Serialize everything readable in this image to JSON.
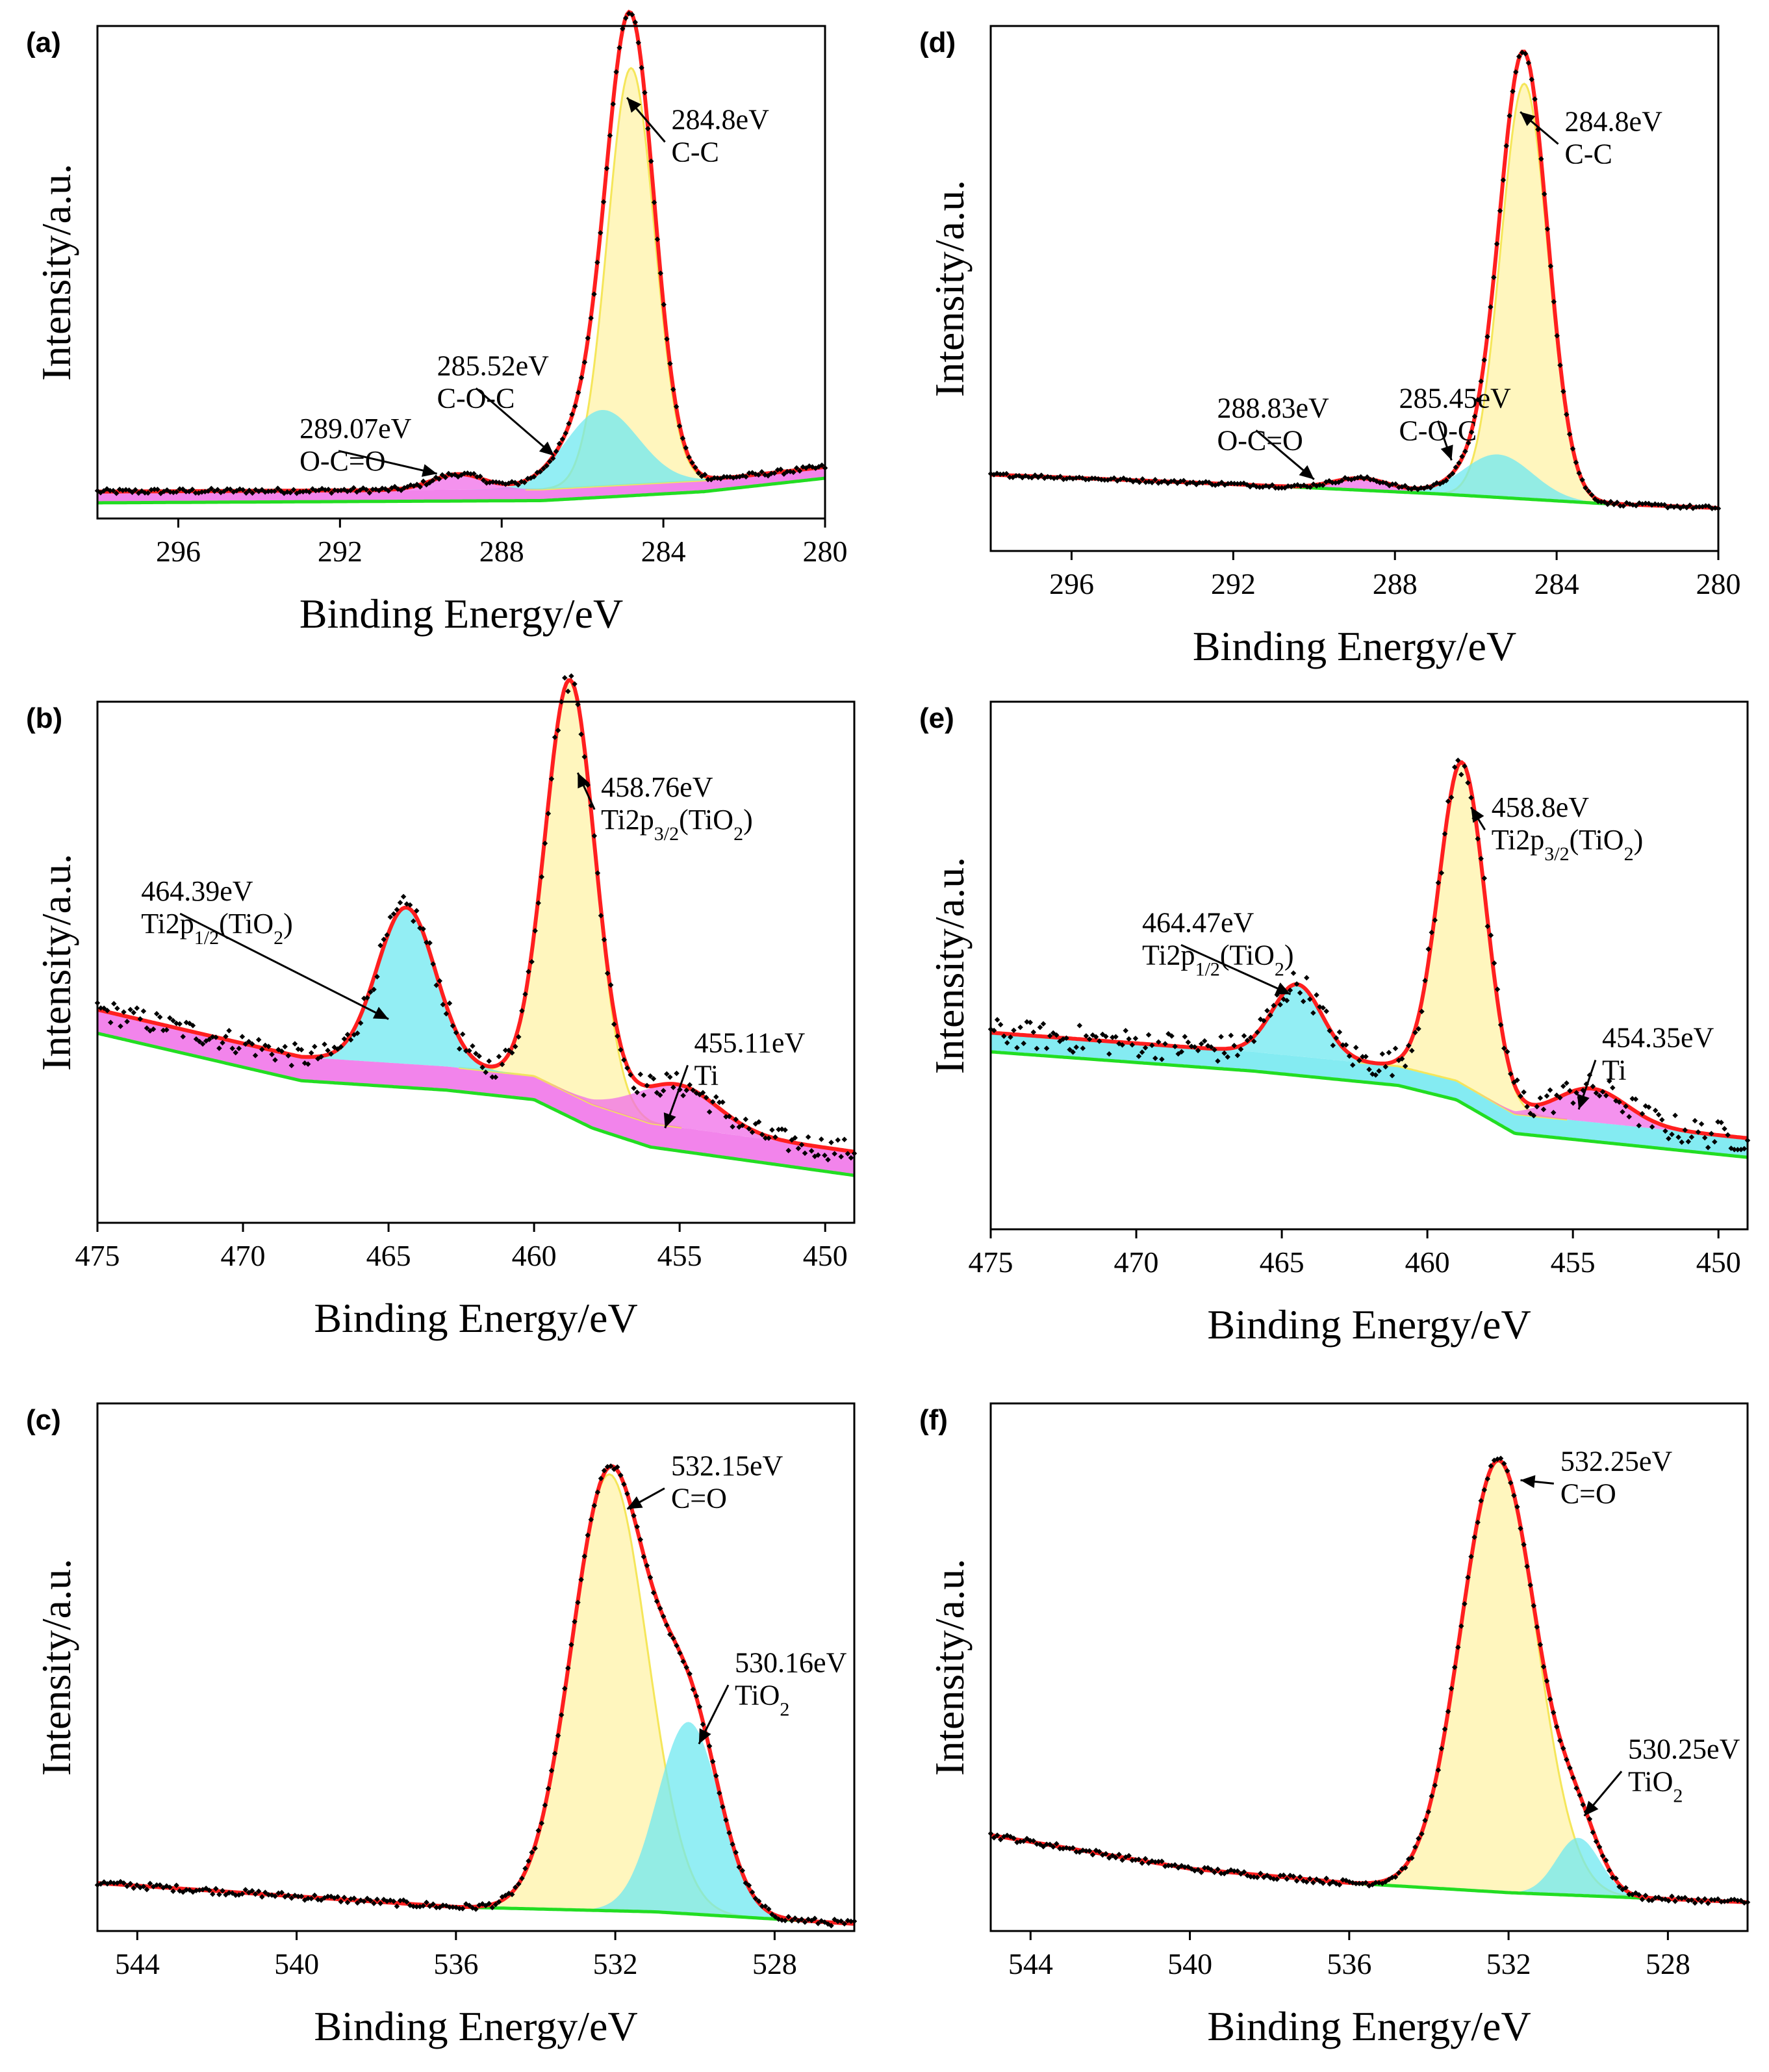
{
  "figure": {
    "xlabel": "Binding Energy/eV",
    "ylabel": "Intensity/a.u.",
    "colors": {
      "envelope": "#ff1f1f",
      "baseline": "#22dd22",
      "data_points": "#000000",
      "yellow_fill": "#fff3a8",
      "cyan_fill": "#6fe8f0",
      "magenta_fill": "#f06ee8",
      "frame": "#000000"
    }
  },
  "chart_data": [
    {
      "id": "a",
      "label": "(a)",
      "type": "line",
      "title": "",
      "xlabel": "Binding Energy/eV",
      "ylabel": "Intensity/a.u.",
      "xlim": [
        298,
        280
      ],
      "ylim": [
        0,
        1.1
      ],
      "xticks": [
        296,
        292,
        288,
        284,
        280
      ],
      "baseline": [
        [
          298,
          0.035
        ],
        [
          287,
          0.04
        ],
        [
          283,
          0.06
        ],
        [
          280,
          0.09
        ]
      ],
      "peaks": [
        {
          "center": 284.8,
          "height": 0.93,
          "width": 0.58,
          "fill": "yellow"
        },
        {
          "center": 285.52,
          "height": 0.17,
          "width": 0.9,
          "fill": "cyan"
        },
        {
          "center": 289.07,
          "height": 0.035,
          "width": 0.65,
          "fill": "magenta"
        }
      ],
      "background_fill": {
        "offset": 0.025,
        "fill": "magenta"
      },
      "noise": 0.006,
      "annotations": [
        {
          "value": "284.8eV",
          "bond": "C-C",
          "target": [
            284.9,
            0.94
          ],
          "text_at": [
            283.8,
            0.87
          ],
          "sub": ""
        },
        {
          "value": "285.52eV",
          "bond": "C-O-C",
          "target": [
            286.7,
            0.14
          ],
          "text_at": [
            289.6,
            0.32
          ],
          "sub": ""
        },
        {
          "value": "289.07eV",
          "bond": "O-C=O",
          "target": [
            289.6,
            0.1
          ],
          "text_at": [
            293.0,
            0.18
          ],
          "sub": ""
        }
      ]
    },
    {
      "id": "b",
      "label": "(b)",
      "type": "line",
      "title": "",
      "xlabel": "Binding Energy/eV",
      "ylabel": "Intensity/a.u.",
      "xlim": [
        475,
        449
      ],
      "ylim": [
        0,
        1.1
      ],
      "xticks": [
        475,
        470,
        465,
        460,
        455,
        450
      ],
      "baseline": [
        [
          475,
          0.4
        ],
        [
          468,
          0.3
        ],
        [
          463,
          0.28
        ],
        [
          460,
          0.26
        ],
        [
          458,
          0.2
        ],
        [
          456,
          0.16
        ],
        [
          449,
          0.1
        ]
      ],
      "peaks": [
        {
          "center": 458.76,
          "height": 0.87,
          "width": 0.85,
          "fill": "yellow"
        },
        {
          "center": 464.39,
          "height": 0.33,
          "width": 1.0,
          "fill": "cyan"
        },
        {
          "center": 455.11,
          "height": 0.09,
          "width": 1.4,
          "fill": "magenta"
        }
      ],
      "background_fill": {
        "offset": 0.05,
        "fill": "magenta"
      },
      "noise": 0.025,
      "annotations": [
        {
          "value": "458.76eV",
          "bond": "Ti2p",
          "sub": "3/2",
          "suffix": "(TiO",
          "sub2": "2",
          "close": ")",
          "target": [
            458.5,
            0.95
          ],
          "text_at": [
            457.7,
            0.9
          ]
        },
        {
          "value": "464.39eV",
          "bond": "Ti2p",
          "sub": "1/2",
          "suffix": "(TiO",
          "sub2": "2",
          "close": ")",
          "target": [
            465.0,
            0.43
          ],
          "text_at": [
            473.5,
            0.68
          ]
        },
        {
          "value": "455.11eV",
          "bond": "Ti",
          "sub": "",
          "target": [
            455.5,
            0.2
          ],
          "text_at": [
            454.5,
            0.36
          ]
        }
      ]
    },
    {
      "id": "c",
      "label": "(c)",
      "type": "line",
      "title": "",
      "xlabel": "Binding Energy/eV",
      "ylabel": "Intensity/a.u.",
      "xlim": [
        545,
        526
      ],
      "ylim": [
        0,
        1.1
      ],
      "xticks": [
        544,
        540,
        536,
        532,
        528
      ],
      "baseline": [
        [
          545,
          0.1
        ],
        [
          536,
          0.05
        ],
        [
          531,
          0.04
        ],
        [
          526,
          0.015
        ]
      ],
      "peaks": [
        {
          "center": 532.15,
          "height": 0.91,
          "width": 0.95,
          "fill": "yellow"
        },
        {
          "center": 530.16,
          "height": 0.4,
          "width": 0.78,
          "fill": "cyan"
        }
      ],
      "background_fill": null,
      "noise": 0.007,
      "annotations": [
        {
          "value": "532.15eV",
          "bond": "C=O",
          "target": [
            531.7,
            0.88
          ],
          "text_at": [
            530.6,
            0.95
          ],
          "sub": ""
        },
        {
          "value": "530.16eV",
          "bond": "TiO",
          "sub": "2",
          "sub_plain": true,
          "target": [
            529.9,
            0.39
          ],
          "text_at": [
            529.0,
            0.54
          ]
        }
      ]
    },
    {
      "id": "d",
      "label": "(d)",
      "type": "line",
      "title": "",
      "xlabel": "Binding Energy/eV",
      "ylabel": "Intensity/a.u.",
      "xlim": [
        298,
        280
      ],
      "ylim": [
        0,
        1.1
      ],
      "xticks": [
        296,
        292,
        288,
        284,
        280
      ],
      "baseline": [
        [
          298,
          0.16
        ],
        [
          292,
          0.14
        ],
        [
          287,
          0.12
        ],
        [
          283,
          0.1
        ],
        [
          280,
          0.09
        ]
      ],
      "peaks": [
        {
          "center": 284.8,
          "height": 0.87,
          "width": 0.58,
          "fill": "yellow"
        },
        {
          "center": 285.45,
          "height": 0.09,
          "width": 0.85,
          "fill": "cyan"
        },
        {
          "center": 288.83,
          "height": 0.025,
          "width": 0.7,
          "fill": "magenta"
        }
      ],
      "background_fill": null,
      "noise": 0.004,
      "annotations": [
        {
          "value": "284.8eV",
          "bond": "C-C",
          "target": [
            284.9,
            0.92
          ],
          "text_at": [
            283.8,
            0.88
          ],
          "sub": ""
        },
        {
          "value": "285.45eV",
          "bond": "C-O-C",
          "target": [
            286.6,
            0.19
          ],
          "text_at": [
            287.9,
            0.3
          ],
          "sub": ""
        },
        {
          "value": "288.83eV",
          "bond": "O-C=O",
          "target": [
            290.0,
            0.15
          ],
          "text_at": [
            292.4,
            0.28
          ],
          "sub": ""
        }
      ]
    },
    {
      "id": "e",
      "label": "(e)",
      "type": "line",
      "title": "",
      "xlabel": "Binding Energy/eV",
      "ylabel": "Intensity/a.u.",
      "xlim": [
        475,
        449
      ],
      "ylim": [
        0,
        1.1
      ],
      "xticks": [
        475,
        470,
        465,
        460,
        455,
        450
      ],
      "baseline": [
        [
          475,
          0.37
        ],
        [
          466,
          0.33
        ],
        [
          461,
          0.3
        ],
        [
          459,
          0.27
        ],
        [
          457,
          0.2
        ],
        [
          449,
          0.15
        ]
      ],
      "peaks": [
        {
          "center": 458.8,
          "height": 0.67,
          "width": 0.8,
          "fill": "yellow"
        },
        {
          "center": 464.47,
          "height": 0.15,
          "width": 0.85,
          "fill": "cyan"
        },
        {
          "center": 454.35,
          "height": 0.07,
          "width": 1.2,
          "fill": "magenta"
        }
      ],
      "background_fill": {
        "offset": 0.04,
        "fill": "cyan"
      },
      "noise": 0.03,
      "annotations": [
        {
          "value": "458.8eV",
          "bond": "Ti2p",
          "sub": "3/2",
          "suffix": "(TiO",
          "sub2": "2",
          "close": ")",
          "target": [
            458.5,
            0.88
          ],
          "text_at": [
            457.8,
            0.86
          ]
        },
        {
          "value": "464.47eV",
          "bond": "Ti2p",
          "sub": "1/2",
          "suffix": "(TiO",
          "sub2": "2",
          "close": ")",
          "target": [
            464.7,
            0.49
          ],
          "text_at": [
            469.8,
            0.62
          ]
        },
        {
          "value": "454.35eV",
          "bond": "Ti",
          "sub": "",
          "target": [
            454.8,
            0.25
          ],
          "text_at": [
            454.0,
            0.38
          ]
        }
      ]
    },
    {
      "id": "f",
      "label": "(f)",
      "type": "line",
      "title": "",
      "xlabel": "Binding Energy/eV",
      "ylabel": "Intensity/a.u.",
      "xlim": [
        545,
        526
      ],
      "ylim": [
        0,
        1.1
      ],
      "xticks": [
        544,
        540,
        536,
        532,
        528
      ],
      "baseline": [
        [
          545,
          0.2
        ],
        [
          540,
          0.13
        ],
        [
          536,
          0.1
        ],
        [
          532,
          0.08
        ],
        [
          526,
          0.06
        ]
      ],
      "peaks": [
        {
          "center": 532.25,
          "height": 0.9,
          "width": 0.95,
          "fill": "yellow"
        },
        {
          "center": 530.25,
          "height": 0.12,
          "width": 0.55,
          "fill": "cyan"
        }
      ],
      "background_fill": null,
      "noise": 0.006,
      "annotations": [
        {
          "value": "532.25eV",
          "bond": "C=O",
          "target": [
            531.7,
            0.94
          ],
          "text_at": [
            530.7,
            0.96
          ],
          "sub": ""
        },
        {
          "value": "530.25eV",
          "bond": "TiO",
          "sub": "2",
          "sub_plain": true,
          "target": [
            530.1,
            0.24
          ],
          "text_at": [
            529.0,
            0.36
          ]
        }
      ]
    }
  ]
}
